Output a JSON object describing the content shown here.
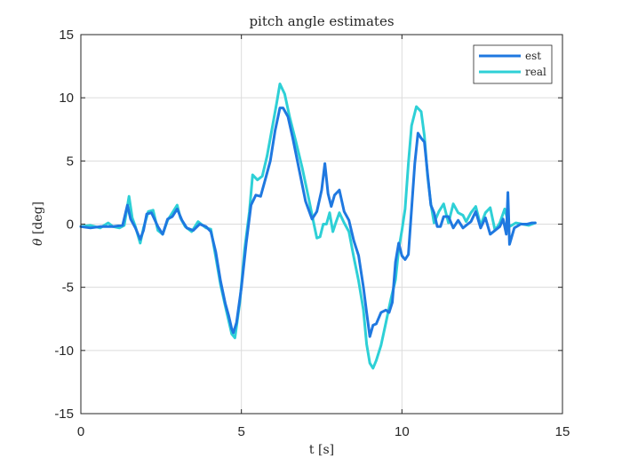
{
  "chart_data": {
    "type": "line",
    "title": "pitch angle estimates",
    "xlabel": "t [s]",
    "ylabel_symbol": "θ",
    "ylabel_unit": "[deg]",
    "xlim": [
      0,
      15
    ],
    "ylim": [
      -15,
      15
    ],
    "xticks": [
      0,
      5,
      10,
      15
    ],
    "yticks": [
      -15,
      -10,
      -5,
      0,
      5,
      10,
      15
    ],
    "xtick_labels": [
      "0",
      "5",
      "10",
      "15"
    ],
    "ytick_labels": [
      "-15",
      "-10",
      "-5",
      "0",
      "5",
      "10",
      "15"
    ],
    "grid": true,
    "legend_position": "top-right",
    "series": [
      {
        "name": "est",
        "color": "#1f78e0",
        "x": [
          0.0,
          0.3,
          0.6,
          1.0,
          1.3,
          1.45,
          1.55,
          1.7,
          1.85,
          1.95,
          2.05,
          2.2,
          2.4,
          2.55,
          2.7,
          2.85,
          3.0,
          3.15,
          3.3,
          3.5,
          3.7,
          3.9,
          4.05,
          4.2,
          4.35,
          4.5,
          4.6,
          4.7,
          4.75,
          4.85,
          5.0,
          5.15,
          5.3,
          5.45,
          5.6,
          5.75,
          5.9,
          6.05,
          6.2,
          6.3,
          6.45,
          6.6,
          6.8,
          7.0,
          7.2,
          7.35,
          7.5,
          7.6,
          7.7,
          7.8,
          7.9,
          8.05,
          8.2,
          8.35,
          8.5,
          8.65,
          8.8,
          8.9,
          9.0,
          9.1,
          9.2,
          9.35,
          9.5,
          9.6,
          9.7,
          9.8,
          9.9,
          10.0,
          10.1,
          10.2,
          10.3,
          10.4,
          10.5,
          10.6,
          10.7,
          10.8,
          10.9,
          11.0,
          11.1,
          11.2,
          11.3,
          11.45,
          11.6,
          11.75,
          11.9,
          12.0,
          12.15,
          12.3,
          12.45,
          12.6,
          12.75,
          12.9,
          13.05,
          13.15,
          13.25,
          13.3,
          13.35,
          13.5,
          13.7,
          13.9,
          14.05,
          14.15
        ],
        "values": [
          -0.2,
          -0.3,
          -0.2,
          -0.2,
          -0.1,
          1.5,
          0.4,
          -0.3,
          -1.2,
          -0.5,
          0.8,
          0.9,
          -0.2,
          -0.8,
          0.4,
          0.6,
          1.2,
          0.3,
          -0.3,
          -0.5,
          0.0,
          -0.2,
          -0.6,
          -2.2,
          -4.5,
          -6.3,
          -7.2,
          -8.3,
          -8.6,
          -7.8,
          -5.0,
          -1.5,
          1.5,
          2.3,
          2.2,
          3.6,
          5.0,
          7.4,
          9.2,
          9.2,
          8.5,
          6.8,
          4.3,
          1.8,
          0.4,
          1.0,
          2.7,
          4.8,
          2.4,
          1.4,
          2.3,
          2.7,
          1.0,
          0.3,
          -1.3,
          -2.5,
          -5.0,
          -7.0,
          -8.9,
          -8.0,
          -7.9,
          -7.0,
          -6.8,
          -7.0,
          -6.2,
          -3.0,
          -1.5,
          -2.5,
          -2.8,
          -2.4,
          1.2,
          4.8,
          7.2,
          6.8,
          6.5,
          4.0,
          1.5,
          0.9,
          -0.2,
          -0.2,
          0.6,
          0.6,
          -0.3,
          0.3,
          -0.3,
          -0.1,
          0.2,
          1.0,
          -0.3,
          0.5,
          -0.8,
          -0.5,
          -0.2,
          0.4,
          -0.8,
          2.5,
          -1.6,
          -0.3,
          0.0,
          0.0,
          0.1,
          0.1
        ]
      },
      {
        "name": "real",
        "color": "#2ed0d6",
        "x": [
          0.0,
          0.3,
          0.6,
          0.85,
          1.0,
          1.2,
          1.35,
          1.5,
          1.6,
          1.7,
          1.85,
          1.95,
          2.1,
          2.25,
          2.4,
          2.55,
          2.7,
          2.85,
          3.0,
          3.1,
          3.25,
          3.45,
          3.65,
          3.9,
          4.05,
          4.2,
          4.35,
          4.5,
          4.6,
          4.7,
          4.8,
          4.95,
          5.1,
          5.25,
          5.35,
          5.5,
          5.65,
          5.8,
          5.95,
          6.1,
          6.2,
          6.35,
          6.5,
          6.7,
          6.9,
          7.1,
          7.25,
          7.35,
          7.45,
          7.55,
          7.65,
          7.75,
          7.85,
          7.95,
          8.05,
          8.2,
          8.35,
          8.5,
          8.65,
          8.8,
          8.9,
          9.0,
          9.1,
          9.2,
          9.35,
          9.5,
          9.65,
          9.8,
          9.9,
          10.0,
          10.1,
          10.2,
          10.3,
          10.45,
          10.6,
          10.7,
          10.8,
          10.9,
          11.0,
          11.15,
          11.3,
          11.45,
          11.6,
          11.75,
          11.9,
          12.0,
          12.15,
          12.3,
          12.45,
          12.6,
          12.75,
          12.9,
          13.05,
          13.2,
          13.35,
          13.55,
          13.75,
          13.95,
          14.15
        ],
        "values": [
          -0.2,
          -0.1,
          -0.3,
          0.1,
          -0.2,
          -0.3,
          -0.1,
          2.2,
          0.5,
          -0.2,
          -1.5,
          -0.3,
          1.0,
          1.1,
          -0.5,
          -0.8,
          0.3,
          0.9,
          1.5,
          0.5,
          -0.2,
          -0.6,
          0.2,
          -0.3,
          -0.4,
          -2.6,
          -4.8,
          -6.5,
          -7.6,
          -8.7,
          -9.0,
          -6.2,
          -2.0,
          1.0,
          3.9,
          3.5,
          3.8,
          5.4,
          7.5,
          9.6,
          11.1,
          10.3,
          8.5,
          6.5,
          4.4,
          2.0,
          0.1,
          -1.1,
          -1.0,
          0.0,
          0.0,
          0.9,
          -0.6,
          0.2,
          0.9,
          0.1,
          -0.6,
          -2.6,
          -4.5,
          -6.8,
          -9.5,
          -11.0,
          -11.4,
          -10.8,
          -9.6,
          -7.8,
          -6.0,
          -4.4,
          -2.0,
          -0.5,
          1.2,
          4.8,
          7.8,
          9.3,
          8.9,
          7.0,
          3.8,
          1.6,
          0.1,
          1.0,
          1.6,
          0.1,
          1.6,
          0.9,
          0.7,
          0.2,
          0.9,
          1.4,
          -0.1,
          0.9,
          1.3,
          -0.5,
          0.1,
          1.2,
          -0.2,
          0.1,
          0.0,
          -0.1,
          0.1
        ]
      }
    ]
  }
}
